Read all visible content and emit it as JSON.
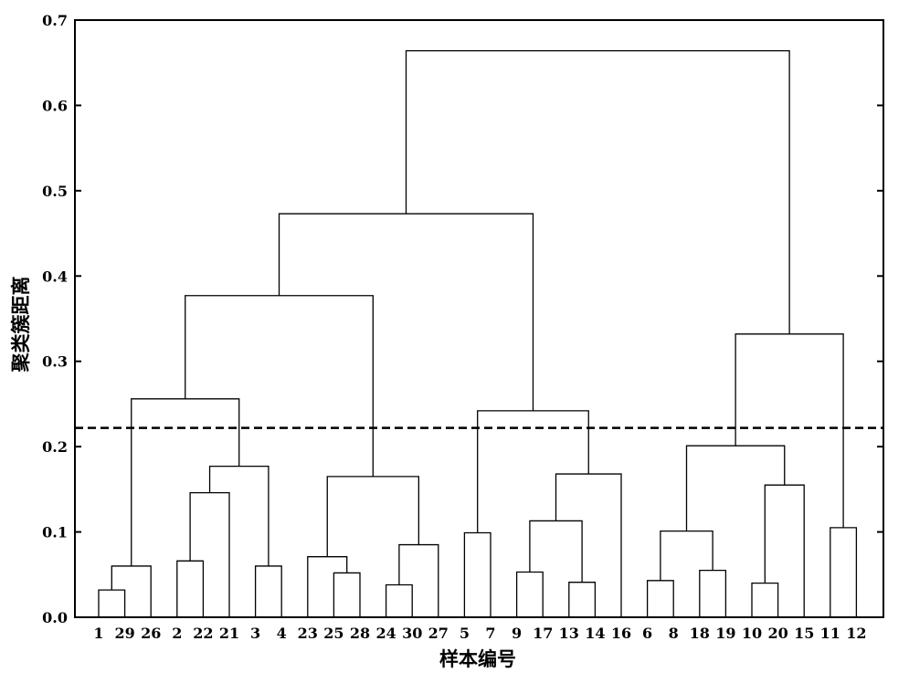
{
  "chart_data": {
    "type": "dendrogram",
    "xlabel": "样本编号",
    "ylabel": "聚类簇距离",
    "ylim": [
      0,
      0.7
    ],
    "yticks": [
      "0.0",
      "0.1",
      "0.2",
      "0.3",
      "0.4",
      "0.5",
      "0.6",
      "0.7"
    ],
    "leaf_order": [
      "1",
      "29",
      "26",
      "2",
      "22",
      "21",
      "3",
      "4",
      "23",
      "25",
      "28",
      "24",
      "30",
      "27",
      "5",
      "7",
      "9",
      "17",
      "13",
      "14",
      "16",
      "6",
      "8",
      "18",
      "19",
      "10",
      "20",
      "15",
      "11",
      "12"
    ],
    "cut_height": 0.222,
    "cut_line_style": "dashed",
    "merges": [
      {
        "id": "c1",
        "left": "1",
        "right": "29",
        "height": 0.032
      },
      {
        "id": "c2",
        "left": "c1",
        "right": "26",
        "height": 0.06
      },
      {
        "id": "c3",
        "left": "2",
        "right": "22",
        "height": 0.066
      },
      {
        "id": "c4",
        "left": "c3",
        "right": "21",
        "height": 0.146
      },
      {
        "id": "c5",
        "left": "3",
        "right": "4",
        "height": 0.06
      },
      {
        "id": "c6",
        "left": "c4",
        "right": "c5",
        "height": 0.177
      },
      {
        "id": "c7",
        "left": "c2",
        "right": "c6",
        "height": 0.256
      },
      {
        "id": "c8",
        "left": "25",
        "right": "28",
        "height": 0.052
      },
      {
        "id": "c9",
        "left": "23",
        "right": "c8",
        "height": 0.071
      },
      {
        "id": "c10",
        "left": "24",
        "right": "30",
        "height": 0.038
      },
      {
        "id": "c11",
        "left": "c10",
        "right": "27",
        "height": 0.085
      },
      {
        "id": "c12",
        "left": "c9",
        "right": "c11",
        "height": 0.165
      },
      {
        "id": "c13",
        "left": "c7",
        "right": "c12",
        "height": 0.377
      },
      {
        "id": "c14",
        "left": "5",
        "right": "7",
        "height": 0.099
      },
      {
        "id": "c15",
        "left": "9",
        "right": "17",
        "height": 0.053
      },
      {
        "id": "c16",
        "left": "13",
        "right": "14",
        "height": 0.041
      },
      {
        "id": "c17",
        "left": "c15",
        "right": "c16",
        "height": 0.113
      },
      {
        "id": "c18",
        "left": "c17",
        "right": "16",
        "height": 0.168
      },
      {
        "id": "c19",
        "left": "c14",
        "right": "c18",
        "height": 0.242
      },
      {
        "id": "c20",
        "left": "c13",
        "right": "c19",
        "height": 0.473
      },
      {
        "id": "c21",
        "left": "6",
        "right": "8",
        "height": 0.043
      },
      {
        "id": "c22",
        "left": "18",
        "right": "19",
        "height": 0.055
      },
      {
        "id": "c23",
        "left": "c21",
        "right": "c22",
        "height": 0.101
      },
      {
        "id": "c24",
        "left": "10",
        "right": "20",
        "height": 0.04
      },
      {
        "id": "c25",
        "left": "c24",
        "right": "15",
        "height": 0.155
      },
      {
        "id": "c26",
        "left": "c23",
        "right": "c25",
        "height": 0.201
      },
      {
        "id": "c27",
        "left": "11",
        "right": "12",
        "height": 0.105
      },
      {
        "id": "c28",
        "left": "c26",
        "right": "c27",
        "height": 0.332
      },
      {
        "id": "c29",
        "left": "c20",
        "right": "c28",
        "height": 0.664
      }
    ]
  }
}
